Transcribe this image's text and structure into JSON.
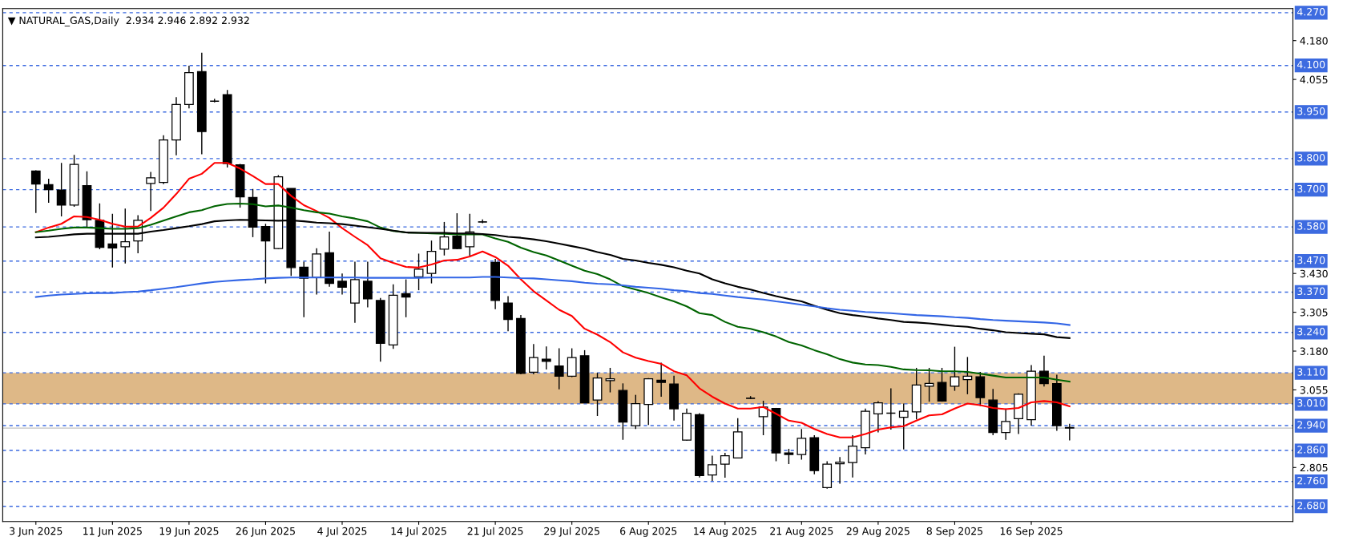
{
  "chart_data": {
    "type": "candlestick",
    "title": "▼ NATURAL_GAS,Daily  2.934 2.946 2.892 2.932",
    "categories": [
      "3 Jun 2025",
      null,
      null,
      null,
      null,
      null,
      "11 Jun 2025",
      null,
      null,
      null,
      null,
      null,
      "19 Jun 2025",
      null,
      null,
      null,
      null,
      null,
      "26 Jun 2025",
      null,
      null,
      null,
      null,
      null,
      "4 Jul 2025",
      null,
      null,
      null,
      null,
      null,
      "14 Jul 2025",
      null,
      null,
      null,
      null,
      null,
      "21 Jul 2025",
      null,
      null,
      null,
      null,
      null,
      "29 Jul 2025",
      null,
      null,
      null,
      null,
      null,
      "6 Aug 2025",
      null,
      null,
      null,
      null,
      null,
      "14 Aug 2025",
      null,
      null,
      null,
      null,
      null,
      "21 Aug 2025",
      null,
      null,
      null,
      null,
      null,
      "29 Aug 2025",
      null,
      null,
      null,
      null,
      null,
      "8 Sep 2025",
      null,
      null,
      null,
      null,
      null,
      "16 Sep 2025",
      null,
      null,
      null
    ],
    "ohlc": [
      [
        3.76,
        3.762,
        3.625,
        3.718
      ],
      [
        3.716,
        3.735,
        3.658,
        3.7
      ],
      [
        3.699,
        3.786,
        3.614,
        3.65
      ],
      [
        3.65,
        3.812,
        3.645,
        3.781
      ],
      [
        3.713,
        3.759,
        3.576,
        3.603
      ],
      [
        3.601,
        3.656,
        3.508,
        3.514
      ],
      [
        3.525,
        3.622,
        3.449,
        3.512
      ],
      [
        3.516,
        3.639,
        3.462,
        3.532
      ],
      [
        3.535,
        3.618,
        3.495,
        3.601
      ],
      [
        3.72,
        3.757,
        3.631,
        3.738
      ],
      [
        3.723,
        3.875,
        3.718,
        3.86
      ],
      [
        3.86,
        3.998,
        3.811,
        3.974
      ],
      [
        3.974,
        4.099,
        3.962,
        4.077
      ],
      [
        4.08,
        4.141,
        3.814,
        3.887
      ],
      [
        3.985,
        3.993,
        3.981,
        3.985
      ],
      [
        4.006,
        4.021,
        3.771,
        3.784
      ],
      [
        3.78,
        3.783,
        3.642,
        3.677
      ],
      [
        3.675,
        3.702,
        3.547,
        3.579
      ],
      [
        3.581,
        3.59,
        3.398,
        3.535
      ],
      [
        3.51,
        3.747,
        3.508,
        3.741
      ],
      [
        3.704,
        3.704,
        3.422,
        3.449
      ],
      [
        3.45,
        3.468,
        3.289,
        3.415
      ],
      [
        3.417,
        3.511,
        3.362,
        3.493
      ],
      [
        3.497,
        3.565,
        3.387,
        3.398
      ],
      [
        3.405,
        3.43,
        3.362,
        3.386
      ],
      [
        3.335,
        3.468,
        3.271,
        3.41
      ],
      [
        3.405,
        3.468,
        3.321,
        3.348
      ],
      [
        3.343,
        3.351,
        3.146,
        3.205
      ],
      [
        3.2,
        3.395,
        3.187,
        3.36
      ],
      [
        3.365,
        3.411,
        3.289,
        3.354
      ],
      [
        3.419,
        3.494,
        3.376,
        3.444
      ],
      [
        3.43,
        3.536,
        3.398,
        3.501
      ],
      [
        3.508,
        3.596,
        3.488,
        3.548
      ],
      [
        3.55,
        3.624,
        3.508,
        3.51
      ],
      [
        3.516,
        3.622,
        3.486,
        3.564
      ],
      [
        3.596,
        3.604,
        3.592,
        3.596
      ],
      [
        3.466,
        3.477,
        3.315,
        3.343
      ],
      [
        3.335,
        3.357,
        3.244,
        3.282
      ],
      [
        3.285,
        3.296,
        3.105,
        3.108
      ],
      [
        3.112,
        3.203,
        3.105,
        3.159
      ],
      [
        3.154,
        3.195,
        3.121,
        3.147
      ],
      [
        3.132,
        3.189,
        3.057,
        3.099
      ],
      [
        3.099,
        3.189,
        3.096,
        3.159
      ],
      [
        3.165,
        3.183,
        3.013,
        3.013
      ],
      [
        3.022,
        3.11,
        2.971,
        3.093
      ],
      [
        3.085,
        3.126,
        3.047,
        3.091
      ],
      [
        3.053,
        3.076,
        2.894,
        2.951
      ],
      [
        2.94,
        3.039,
        2.929,
        3.011
      ],
      [
        3.008,
        3.093,
        2.942,
        3.091
      ],
      [
        3.086,
        3.143,
        3.033,
        3.079
      ],
      [
        3.074,
        3.101,
        2.956,
        2.994
      ],
      [
        2.893,
        2.995,
        2.891,
        2.98
      ],
      [
        2.975,
        2.98,
        2.773,
        2.779
      ],
      [
        2.781,
        2.843,
        2.762,
        2.814
      ],
      [
        2.816,
        2.852,
        2.772,
        2.843
      ],
      [
        2.836,
        2.964,
        2.834,
        2.92
      ],
      [
        3.028,
        3.035,
        3.026,
        3.028
      ],
      [
        2.969,
        3.02,
        2.909,
        3.0
      ],
      [
        2.995,
        2.997,
        2.825,
        2.852
      ],
      [
        2.852,
        2.865,
        2.816,
        2.847
      ],
      [
        2.847,
        2.929,
        2.83,
        2.899
      ],
      [
        2.901,
        2.909,
        2.783,
        2.795
      ],
      [
        2.74,
        2.825,
        2.737,
        2.816
      ],
      [
        2.817,
        2.839,
        2.753,
        2.822
      ],
      [
        2.821,
        2.909,
        2.773,
        2.874
      ],
      [
        2.869,
        2.995,
        2.847,
        2.986
      ],
      [
        2.978,
        3.019,
        2.918,
        3.013
      ],
      [
        2.98,
        3.06,
        2.927,
        2.98
      ],
      [
        2.967,
        3.011,
        2.863,
        2.986
      ],
      [
        2.984,
        3.126,
        2.96,
        3.071
      ],
      [
        3.067,
        3.126,
        3.017,
        3.076
      ],
      [
        3.079,
        3.126,
        3.017,
        3.019
      ],
      [
        3.067,
        3.194,
        3.052,
        3.097
      ],
      [
        3.088,
        3.161,
        3.041,
        3.099
      ],
      [
        3.097,
        3.113,
        3.003,
        3.03
      ],
      [
        3.022,
        3.058,
        2.909,
        2.918
      ],
      [
        2.918,
        2.995,
        2.894,
        2.953
      ],
      [
        2.962,
        3.044,
        2.913,
        3.041
      ],
      [
        2.959,
        3.135,
        2.94,
        3.115
      ],
      [
        3.115,
        3.165,
        3.066,
        3.075
      ],
      [
        3.075,
        3.104,
        2.923,
        2.94
      ],
      [
        2.934,
        2.946,
        2.892,
        2.932
      ]
    ],
    "series": [
      {
        "type": "line",
        "color": "#ff0000",
        "values": [
          3.563,
          3.578,
          3.59,
          3.614,
          3.612,
          3.603,
          3.59,
          3.581,
          3.581,
          3.609,
          3.642,
          3.686,
          3.735,
          3.751,
          3.786,
          3.786,
          3.768,
          3.744,
          3.718,
          3.718,
          3.68,
          3.65,
          3.631,
          3.609,
          3.576,
          3.548,
          3.521,
          3.479,
          3.464,
          3.451,
          3.449,
          3.459,
          3.472,
          3.474,
          3.485,
          3.501,
          3.483,
          3.455,
          3.411,
          3.373,
          3.343,
          3.313,
          3.293,
          3.252,
          3.233,
          3.209,
          3.176,
          3.159,
          3.148,
          3.139,
          3.115,
          3.102,
          3.06,
          3.033,
          3.011,
          2.995,
          2.995,
          3.0,
          2.978,
          2.956,
          2.949,
          2.929,
          2.913,
          2.902,
          2.902,
          2.913,
          2.927,
          2.934,
          2.938,
          2.956,
          2.973,
          2.976,
          2.995,
          3.011,
          3.006,
          2.997,
          2.993,
          2.997,
          3.015,
          3.019,
          3.015,
          3.002
        ]
      },
      {
        "type": "line",
        "color": "#006400",
        "values": [
          3.563,
          3.568,
          3.574,
          3.578,
          3.578,
          3.576,
          3.574,
          3.574,
          3.576,
          3.587,
          3.6,
          3.614,
          3.627,
          3.634,
          3.647,
          3.654,
          3.655,
          3.653,
          3.646,
          3.649,
          3.642,
          3.634,
          3.627,
          3.623,
          3.614,
          3.607,
          3.598,
          3.578,
          3.567,
          3.562,
          3.561,
          3.559,
          3.558,
          3.556,
          3.556,
          3.556,
          3.543,
          3.532,
          3.513,
          3.499,
          3.488,
          3.472,
          3.455,
          3.439,
          3.428,
          3.411,
          3.389,
          3.378,
          3.367,
          3.353,
          3.34,
          3.324,
          3.302,
          3.296,
          3.274,
          3.258,
          3.252,
          3.241,
          3.227,
          3.209,
          3.198,
          3.183,
          3.17,
          3.154,
          3.143,
          3.137,
          3.135,
          3.129,
          3.121,
          3.119,
          3.118,
          3.115,
          3.115,
          3.113,
          3.107,
          3.101,
          3.095,
          3.095,
          3.095,
          3.095,
          3.088,
          3.082
        ]
      },
      {
        "type": "line",
        "color": "#000000",
        "values": [
          3.546,
          3.548,
          3.552,
          3.556,
          3.558,
          3.558,
          3.558,
          3.558,
          3.558,
          3.565,
          3.57,
          3.576,
          3.582,
          3.589,
          3.598,
          3.601,
          3.603,
          3.602,
          3.601,
          3.6,
          3.601,
          3.598,
          3.594,
          3.592,
          3.589,
          3.584,
          3.579,
          3.574,
          3.568,
          3.562,
          3.561,
          3.561,
          3.561,
          3.559,
          3.559,
          3.557,
          3.554,
          3.548,
          3.545,
          3.54,
          3.534,
          3.526,
          3.518,
          3.51,
          3.499,
          3.49,
          3.477,
          3.472,
          3.464,
          3.458,
          3.45,
          3.439,
          3.43,
          3.411,
          3.398,
          3.387,
          3.378,
          3.367,
          3.357,
          3.348,
          3.34,
          3.326,
          3.313,
          3.302,
          3.296,
          3.291,
          3.285,
          3.28,
          3.274,
          3.272,
          3.269,
          3.265,
          3.261,
          3.258,
          3.252,
          3.247,
          3.241,
          3.238,
          3.236,
          3.234,
          3.225,
          3.222
        ]
      },
      {
        "type": "line",
        "color": "#3366e6",
        "values": [
          3.354,
          3.359,
          3.362,
          3.364,
          3.366,
          3.367,
          3.367,
          3.37,
          3.372,
          3.376,
          3.381,
          3.386,
          3.392,
          3.398,
          3.403,
          3.406,
          3.409,
          3.411,
          3.414,
          3.416,
          3.417,
          3.417,
          3.417,
          3.417,
          3.417,
          3.417,
          3.416,
          3.416,
          3.416,
          3.416,
          3.416,
          3.417,
          3.417,
          3.417,
          3.417,
          3.419,
          3.419,
          3.417,
          3.415,
          3.414,
          3.411,
          3.408,
          3.405,
          3.4,
          3.397,
          3.395,
          3.392,
          3.387,
          3.384,
          3.381,
          3.376,
          3.373,
          3.367,
          3.364,
          3.359,
          3.354,
          3.35,
          3.346,
          3.34,
          3.335,
          3.329,
          3.324,
          3.318,
          3.313,
          3.31,
          3.306,
          3.304,
          3.302,
          3.299,
          3.296,
          3.294,
          3.292,
          3.289,
          3.287,
          3.283,
          3.28,
          3.278,
          3.276,
          3.274,
          3.272,
          3.269,
          3.264
        ]
      }
    ],
    "ylim": [
      2.631,
      4.283
    ],
    "yticks": [
      {
        "value": 4.18,
        "label": "4.180"
      },
      4.055,
      {
        "value": 3.43,
        "label": "3.430"
      },
      3.305,
      {
        "value": 3.18,
        "label": "3.180"
      },
      3.055,
      2.805
    ],
    "ref_lines": [
      {
        "axis": "y",
        "value": 4.27,
        "label": "4.270",
        "color": "#3d6be0",
        "line_style": "dashed"
      },
      {
        "axis": "y",
        "value": 4.1,
        "label": "4.100",
        "color": "#3d6be0",
        "line_style": "dashed"
      },
      {
        "axis": "y",
        "value": 3.95,
        "label": "3.950",
        "color": "#3d6be0",
        "line_style": "dashed"
      },
      {
        "axis": "y",
        "value": 3.8,
        "label": "3.800",
        "color": "#3d6be0",
        "line_style": "dashed"
      },
      {
        "axis": "y",
        "value": 3.7,
        "label": "3.700",
        "color": "#3d6be0",
        "line_style": "dashed"
      },
      {
        "axis": "y",
        "value": 3.58,
        "label": "3.580",
        "color": "#3d6be0",
        "line_style": "dashed"
      },
      {
        "axis": "y",
        "value": 3.47,
        "label": "3.470",
        "color": "#3d6be0",
        "line_style": "dashed"
      },
      {
        "axis": "y",
        "value": 3.37,
        "label": "3.370",
        "color": "#3d6be0",
        "line_style": "dashed"
      },
      {
        "axis": "y",
        "value": 3.24,
        "label": "3.240",
        "color": "#3d6be0",
        "line_style": "dashed"
      },
      {
        "axis": "y",
        "value": 3.11,
        "label": "3.110",
        "color": "#3d6be0",
        "line_style": "dashed"
      },
      {
        "axis": "y",
        "value": 3.01,
        "label": "3.010",
        "color": "#3d6be0",
        "line_style": "dashed"
      },
      {
        "axis": "y",
        "value": 2.94,
        "label": "2.940",
        "color": "#3d6be0",
        "line_style": "dashed"
      },
      {
        "axis": "y",
        "value": 2.86,
        "label": "2.860",
        "color": "#3d6be0",
        "line_style": "dashed"
      },
      {
        "axis": "y",
        "value": 2.76,
        "label": "2.760",
        "color": "#3d6be0",
        "line_style": "dashed"
      },
      {
        "axis": "y",
        "value": 2.68,
        "label": "2.680",
        "color": "#3d6be0",
        "line_style": "dashed"
      },
      {
        "axis": "y",
        "value": 2.932,
        "color": "#c0c0c0",
        "line_style": "solid"
      }
    ],
    "bands": [
      {
        "axis": "y",
        "from": 3.01,
        "to": 3.11,
        "color": "#deb887"
      }
    ],
    "grid": false,
    "legend": false
  }
}
